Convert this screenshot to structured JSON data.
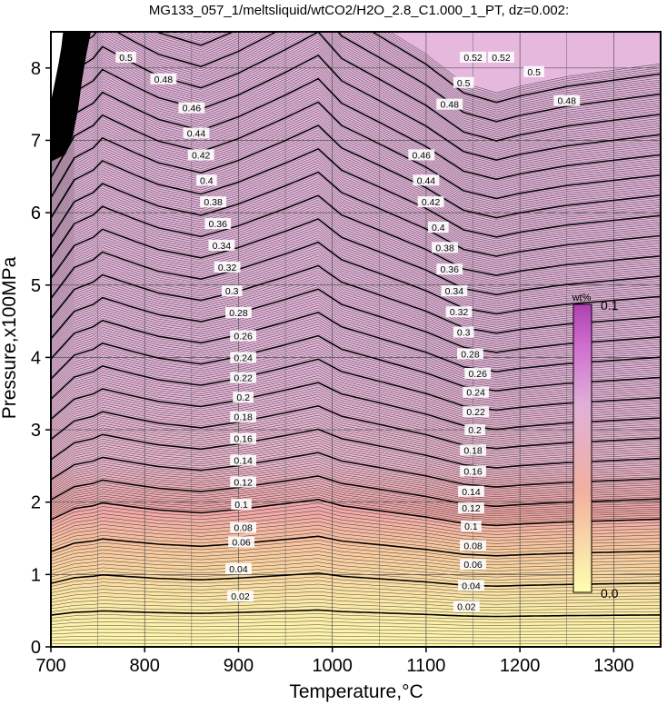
{
  "chart_data": {
    "type": "contour",
    "title": "MG133_057_1/meltsliquid/wtCO2/H2O_2.8_C1.000_1_PT, dz=0.002:",
    "xlabel": "Temperature,°C",
    "ylabel": "Pressure,x100MPa",
    "xlim": [
      700,
      1350
    ],
    "ylim": [
      0,
      8.5
    ],
    "xticks": [
      700,
      800,
      900,
      1000,
      1100,
      1200,
      1300
    ],
    "yticks": [
      0,
      1,
      2,
      3,
      4,
      5,
      6,
      7,
      8
    ],
    "grid": true,
    "contour_interval": 0.002,
    "major_contour_interval": 0.02,
    "colorbar": {
      "unit": "wt%",
      "min_label": "0.0",
      "max_label": "0.1",
      "range": [
        0.0,
        0.1
      ],
      "colors": [
        "#ffffb0",
        "#f2b0a0",
        "#e0b0d8",
        "#d070d0",
        "#b040b0"
      ]
    },
    "contour_labels": [
      {
        "value": "0.02",
        "positions": [
          [
            902,
            0.7
          ],
          [
            1143,
            0.56
          ]
        ]
      },
      {
        "value": "0.04",
        "positions": [
          [
            900,
            1.08
          ],
          [
            1148,
            0.85
          ]
        ]
      },
      {
        "value": "0.06",
        "positions": [
          [
            903,
            1.45
          ],
          [
            1150,
            1.14
          ]
        ]
      },
      {
        "value": "0.08",
        "positions": [
          [
            905,
            1.65
          ],
          [
            1150,
            1.4
          ]
        ]
      },
      {
        "value": "0.1",
        "positions": [
          [
            903,
            1.97
          ],
          [
            1148,
            1.67
          ]
        ]
      },
      {
        "value": "0.12",
        "positions": [
          [
            905,
            2.28
          ],
          [
            1148,
            1.92
          ]
        ]
      },
      {
        "value": "0.14",
        "positions": [
          [
            905,
            2.58
          ],
          [
            1148,
            2.15
          ]
        ]
      },
      {
        "value": "0.16",
        "positions": [
          [
            905,
            2.88
          ],
          [
            1150,
            2.43
          ]
        ]
      },
      {
        "value": "0.18",
        "positions": [
          [
            905,
            3.18
          ],
          [
            1150,
            2.72
          ]
        ]
      },
      {
        "value": "0.2",
        "positions": [
          [
            905,
            3.45
          ],
          [
            1152,
            3.0
          ]
        ]
      },
      {
        "value": "0.22",
        "positions": [
          [
            905,
            3.72
          ],
          [
            1153,
            3.25
          ]
        ]
      },
      {
        "value": "0.24",
        "positions": [
          [
            905,
            4.0
          ],
          [
            1153,
            3.52
          ]
        ]
      },
      {
        "value": "0.26",
        "positions": [
          [
            905,
            4.3
          ],
          [
            1155,
            3.78
          ]
        ]
      },
      {
        "value": "0.28",
        "positions": [
          [
            900,
            4.62
          ],
          [
            1147,
            4.05
          ]
        ]
      },
      {
        "value": "0.3",
        "positions": [
          [
            893,
            4.92
          ],
          [
            1140,
            4.35
          ]
        ]
      },
      {
        "value": "0.32",
        "positions": [
          [
            888,
            5.25
          ],
          [
            1135,
            4.63
          ]
        ]
      },
      {
        "value": "0.34",
        "positions": [
          [
            882,
            5.55
          ],
          [
            1130,
            4.92
          ]
        ]
      },
      {
        "value": "0.36",
        "positions": [
          [
            878,
            5.85
          ],
          [
            1125,
            5.22
          ]
        ]
      },
      {
        "value": "0.38",
        "positions": [
          [
            873,
            6.15
          ],
          [
            1120,
            5.52
          ]
        ]
      },
      {
        "value": "0.4",
        "positions": [
          [
            866,
            6.45
          ],
          [
            1113,
            5.8
          ]
        ]
      },
      {
        "value": "0.42",
        "positions": [
          [
            860,
            6.8
          ],
          [
            1105,
            6.15
          ]
        ]
      },
      {
        "value": "0.44",
        "positions": [
          [
            855,
            7.1
          ],
          [
            1100,
            6.45
          ]
        ]
      },
      {
        "value": "0.46",
        "positions": [
          [
            850,
            7.45
          ],
          [
            1095,
            6.8
          ]
        ]
      },
      {
        "value": "0.48",
        "positions": [
          [
            820,
            7.85
          ],
          [
            1125,
            7.5
          ],
          [
            1250,
            7.55
          ]
        ]
      },
      {
        "value": "0.5",
        "positions": [
          [
            780,
            8.15
          ],
          [
            1140,
            7.8
          ],
          [
            1215,
            7.95
          ]
        ]
      },
      {
        "value": "0.52",
        "positions": [
          [
            1150,
            8.15
          ],
          [
            1180,
            8.15
          ]
        ]
      }
    ]
  }
}
